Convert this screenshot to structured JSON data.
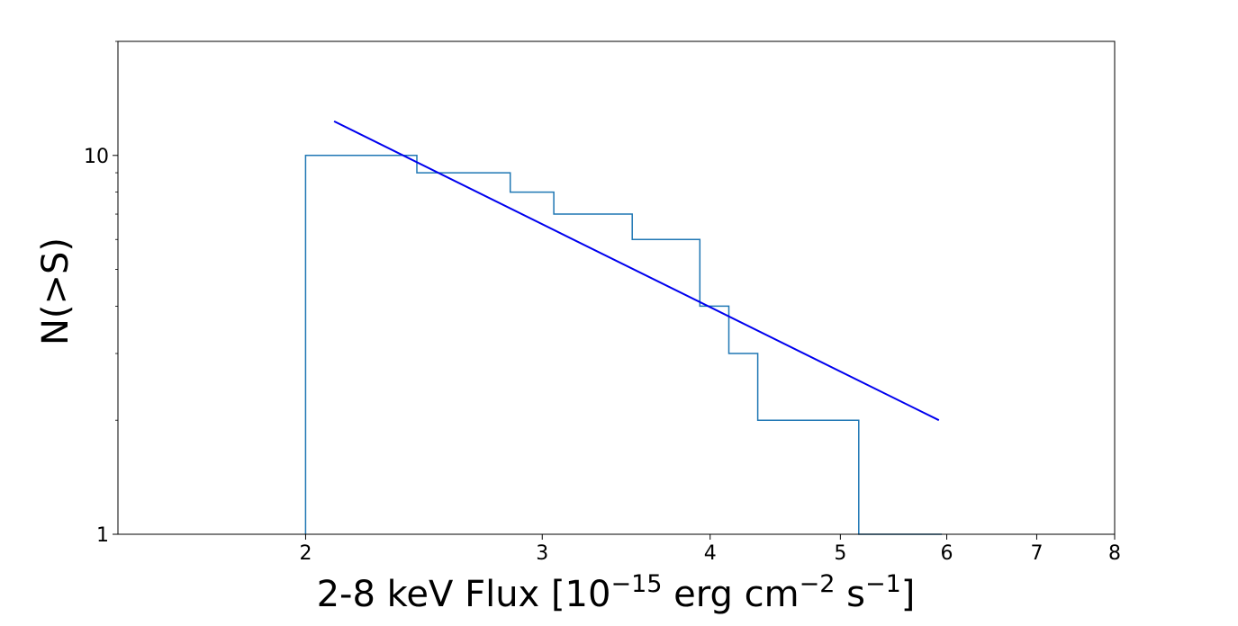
{
  "chart_data": {
    "type": "line",
    "title": "",
    "xlabel": {
      "base": "2-8 keV Flux [10",
      "exp1": "−15",
      "mid1": " erg cm",
      "exp2": "−2",
      "mid2": " s",
      "exp3": "−1",
      "end": "]"
    },
    "ylabel": "N(>S)",
    "xscale": "log",
    "yscale": "log",
    "xlim": [
      1.45,
      8.0
    ],
    "ylim": [
      1,
      20
    ],
    "grid": false,
    "xticks": [
      {
        "value": 2,
        "label": "2"
      },
      {
        "value": 3,
        "label": "3"
      },
      {
        "value": 4,
        "label": "4"
      },
      {
        "value": 5,
        "label": "5"
      },
      {
        "value": 6,
        "label": "6"
      },
      {
        "value": 7,
        "label": "7"
      },
      {
        "value": 8,
        "label": "8"
      }
    ],
    "yticks": [
      {
        "value": 1,
        "label": "1"
      },
      {
        "value": 10,
        "label": "10"
      }
    ],
    "series": [
      {
        "style": "step",
        "color": "#1f77b4",
        "x": [
          2.0,
          2.0,
          2.42,
          2.42,
          2.84,
          2.84,
          3.06,
          3.06,
          3.5,
          3.5,
          3.93,
          3.93,
          4.13,
          4.13,
          4.34,
          4.34,
          5.16,
          5.16,
          5.95
        ],
        "y": [
          1.0,
          10.0,
          10.0,
          9.0,
          9.0,
          8.0,
          8.0,
          7.0,
          7.0,
          6.0,
          6.0,
          4.0,
          4.0,
          3.0,
          3.0,
          2.0,
          2.0,
          1.0,
          1.0
        ]
      },
      {
        "style": "line",
        "color": "#0000ee",
        "x": [
          2.1,
          5.92
        ],
        "y": [
          12.3,
          2.0
        ]
      }
    ]
  }
}
